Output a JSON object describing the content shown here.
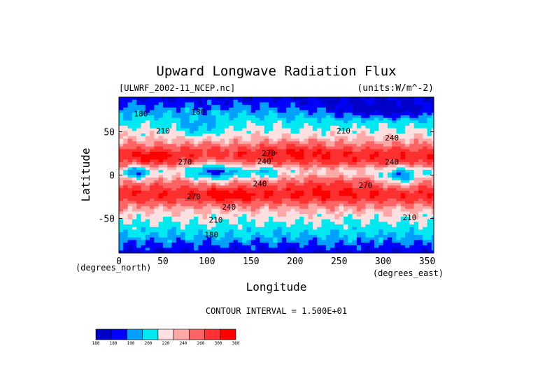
{
  "chart_data": {
    "type": "heatmap",
    "title": "Upward Longwave Radiation Flux",
    "subtitle_left": "[ULWRF_2002-11_NCEP.nc]",
    "subtitle_right": "(units:W/m^-2)",
    "xlabel": "Longitude",
    "ylabel": "Latitude",
    "x_unit_label": "(degrees_east)",
    "y_unit_label": "(degrees_north)",
    "xlim": [
      0,
      357.5
    ],
    "ylim": [
      -90,
      90
    ],
    "x_ticks": [
      0,
      50,
      100,
      150,
      200,
      250,
      300,
      350
    ],
    "y_ticks": [
      50,
      0,
      -50
    ],
    "contour_interval_text": "CONTOUR INTERVAL = 1.500E+01",
    "contour_labels": [
      {
        "text": "180",
        "lon": 25,
        "lat": 68
      },
      {
        "text": "180",
        "lon": 90,
        "lat": 70
      },
      {
        "text": "210",
        "lon": 50,
        "lat": 48
      },
      {
        "text": "210",
        "lon": 255,
        "lat": 48
      },
      {
        "text": "240",
        "lon": 310,
        "lat": 40
      },
      {
        "text": "270",
        "lon": 170,
        "lat": 22
      },
      {
        "text": "240",
        "lon": 165,
        "lat": 13
      },
      {
        "text": "270",
        "lon": 75,
        "lat": 12
      },
      {
        "text": "240",
        "lon": 310,
        "lat": 12
      },
      {
        "text": "240",
        "lon": 160,
        "lat": -13
      },
      {
        "text": "270",
        "lon": 280,
        "lat": -15
      },
      {
        "text": "270",
        "lon": 85,
        "lat": -28
      },
      {
        "text": "240",
        "lon": 125,
        "lat": -40
      },
      {
        "text": "210",
        "lon": 110,
        "lat": -55
      },
      {
        "text": "210",
        "lon": 330,
        "lat": -52
      },
      {
        "text": "180",
        "lon": 105,
        "lat": -72
      }
    ],
    "colorbar": {
      "levels": [
        "180",
        "180",
        "190",
        "200",
        "220",
        "240",
        "260",
        "300",
        "360"
      ],
      "colors": [
        "#0000c8",
        "#0000ff",
        "#00a0ff",
        "#00e8f0",
        "#ffe0e0",
        "#ffa8a8",
        "#ff6464",
        "#ff3030",
        "#ff0000"
      ]
    }
  }
}
